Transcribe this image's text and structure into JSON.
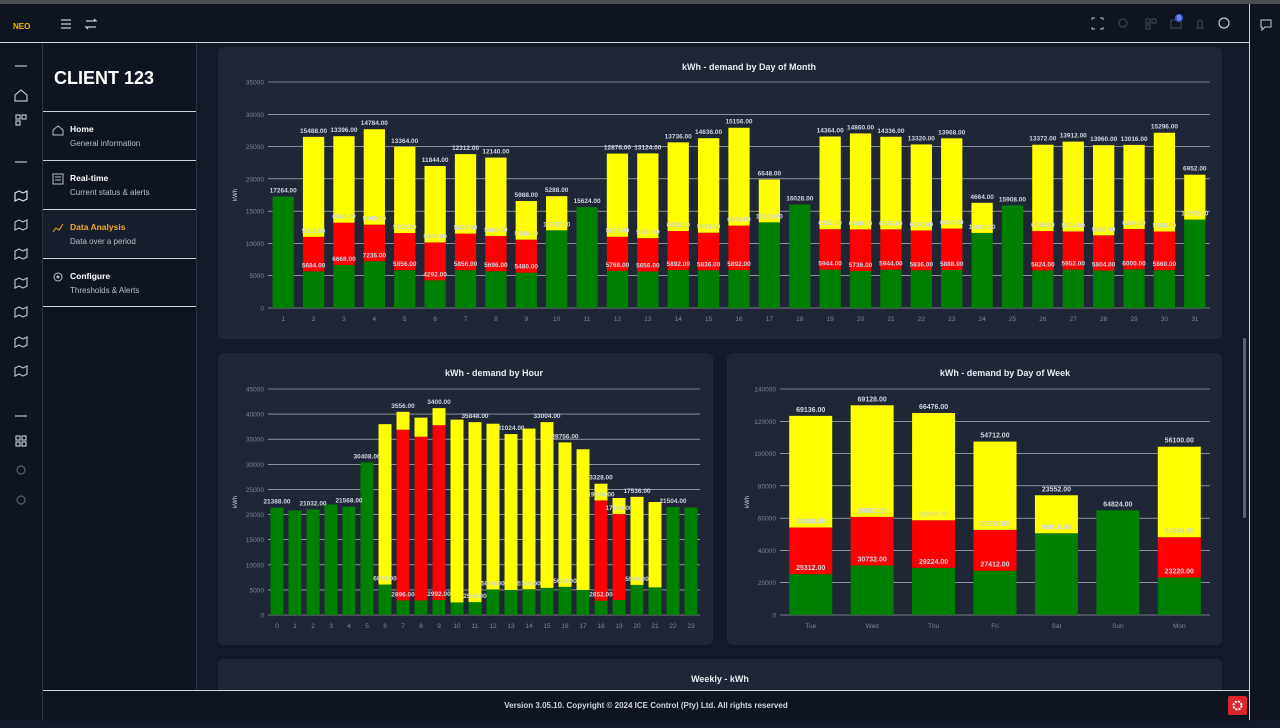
{
  "header": {
    "brand": "NEO",
    "notification_count": "0"
  },
  "sidebar": {
    "client": "CLIENT 123",
    "nav": [
      {
        "title": "Home",
        "subtitle": "General information"
      },
      {
        "title": "Real-time",
        "subtitle": "Current status & alerts"
      },
      {
        "title": "Data Analysis",
        "subtitle": "Data over a period"
      },
      {
        "title": "Configure",
        "subtitle": "Thresholds & Alerts"
      }
    ]
  },
  "chart_data": [
    {
      "type": "bar",
      "stacked": true,
      "title": "kWh - demand by Day of Month",
      "y_label": "kWh",
      "grid": true,
      "categories": [
        "1",
        "2",
        "3",
        "4",
        "5",
        "6",
        "7",
        "8",
        "9",
        "10",
        "11",
        "12",
        "13",
        "14",
        "15",
        "16",
        "17",
        "18",
        "19",
        "20",
        "21",
        "22",
        "23",
        "24",
        "25",
        "26",
        "27",
        "28",
        "29",
        "30",
        "31"
      ],
      "ylim": [
        0,
        35000
      ],
      "yticks": [
        0,
        5000,
        10000,
        15000,
        20000,
        25000,
        30000,
        35000
      ],
      "series": [
        {
          "color": "#008000",
          "values": [
            17264,
            5684,
            6668,
            7236,
            5856,
            4292,
            5856,
            5696,
            5480,
            12032,
            15624,
            5768,
            5656,
            5892,
            5836,
            5892,
            13264,
            16028,
            5944,
            5736,
            5944,
            5836,
            5888,
            11628,
            15908,
            5824,
            5952,
            5804,
            6000,
            5860,
            13692
          ],
          "value_labels": [
            "17264.00",
            "5684.00",
            "6668.00",
            "7236.00",
            "5856.00",
            "4292.00",
            "5856.00",
            "5696.00",
            "5480.00",
            "12032.00",
            "15624.00",
            "5768.00",
            "5656.00",
            "5892.00",
            "5836.00",
            "5892.00",
            "13264.00",
            "16028.00",
            "5944.00",
            "5736.00",
            "5944.00",
            "5836.00",
            "5888.00",
            "11628.00",
            "15908.00",
            "5824.00",
            "5952.00",
            "5804.00",
            "6000.00",
            "5860.00",
            "13692.00"
          ]
        },
        {
          "color": "#ff0000",
          "values": [
            null,
            5336,
            6544,
            5668,
            5752,
            5860,
            5664,
            5460,
            5108,
            null,
            null,
            5268,
            5160,
            6028,
            5824,
            6868,
            null,
            null,
            6252,
            6440,
            6240,
            6176,
            6424,
            null,
            null,
            6088,
            5904,
            5452,
            6244,
            5988,
            null
          ],
          "value_labels": [
            null,
            "5336.00",
            "6544.00",
            "5668.00",
            "5752.00",
            "5860.00",
            "5664.00",
            "5460.00",
            "5108.00",
            null,
            null,
            "5268.00",
            "5160.00",
            "6028.00",
            "5824.00",
            "6868.00",
            null,
            null,
            "6252.00",
            "6440.00",
            "6240.00",
            "6176.00",
            "6424.00",
            null,
            null,
            "6088.00",
            "5904.00",
            "5452.00",
            "6244.00",
            "5988.00",
            null
          ]
        },
        {
          "color": "#ffff00",
          "values": [
            null,
            15488,
            13396,
            14784,
            13364,
            11844,
            12312,
            12140,
            5988,
            5288,
            null,
            12876,
            13124,
            13736,
            14636,
            15156,
            6648,
            null,
            14364,
            14860,
            14336,
            13320,
            13968,
            4664,
            null,
            13372,
            13912,
            13960,
            13016,
            15296,
            6952
          ],
          "value_labels": [
            null,
            "15488.00",
            "13396.00",
            "14784.00",
            "13364.00",
            "11844.00",
            "12312.00",
            "12140.00",
            "5988.00",
            "5288.00",
            null,
            "12876.00",
            "13124.00",
            "13736.00",
            "14636.00",
            "15156.00",
            "6648.00",
            null,
            "14364.00",
            "14860.00",
            "14336.00",
            "13320.00",
            "13968.00",
            "4664.00",
            null,
            "13372.00",
            "13912.00",
            "13960.00",
            "13016.00",
            "15296.00",
            "6952.00"
          ]
        }
      ]
    },
    {
      "type": "bar",
      "stacked": true,
      "title": "kWh - demand by Hour",
      "y_label": "kWh",
      "grid": true,
      "categories": [
        "0",
        "1",
        "2",
        "3",
        "4",
        "5",
        "6",
        "7",
        "8",
        "9",
        "10",
        "11",
        "12",
        "13",
        "14",
        "15",
        "16",
        "17",
        "18",
        "19",
        "20",
        "21",
        "22",
        "23"
      ],
      "ylim": [
        0,
        45000
      ],
      "yticks": [
        0,
        5000,
        10000,
        15000,
        20000,
        25000,
        30000,
        35000,
        40000,
        45000
      ],
      "series": [
        {
          "color": "#008000",
          "values": [
            21388,
            20800,
            21032,
            22000,
            21568,
            30408,
            6068,
            2896,
            2900,
            2992,
            2500,
            2556,
            5084,
            5000,
            5120,
            5400,
            5604,
            5000,
            2852,
            3000,
            5996,
            5500,
            21504,
            21400
          ],
          "value_labels": [
            "21388.00",
            null,
            "21032.00",
            null,
            "21568.00",
            "30408.00",
            "6068.00",
            "2896.00",
            null,
            "2992.00",
            null,
            "2556.00",
            "5084.00",
            null,
            "5120.00",
            null,
            "5604.00",
            null,
            "2852.00",
            null,
            "5996.00",
            null,
            "21504.00",
            null
          ]
        },
        {
          "color": "#ff0000",
          "values": [
            null,
            null,
            null,
            null,
            null,
            null,
            null,
            34000,
            32600,
            34800,
            null,
            null,
            null,
            null,
            null,
            null,
            null,
            null,
            19964,
            17104,
            null,
            null,
            null,
            null
          ],
          "value_labels": [
            null,
            null,
            null,
            null,
            null,
            null,
            null,
            null,
            null,
            null,
            null,
            null,
            null,
            null,
            null,
            null,
            null,
            null,
            "19964.00",
            "17104.00",
            null,
            null,
            null,
            null
          ]
        },
        {
          "color": "#ffff00",
          "values": [
            null,
            null,
            null,
            null,
            null,
            null,
            31932,
            3556,
            3800,
            3400,
            36400,
            35848,
            33000,
            31024,
            32000,
            33004,
            28756,
            28000,
            3328,
            3196,
            17536,
            17000,
            null,
            null
          ],
          "value_labels": [
            null,
            null,
            null,
            null,
            null,
            null,
            null,
            "3556.00",
            null,
            "3400.00",
            null,
            "35848.00",
            null,
            "31024.00",
            null,
            "33004.00",
            "28756.00",
            null,
            "3328.00",
            null,
            "17536.00",
            null,
            null,
            null
          ]
        }
      ]
    },
    {
      "type": "bar",
      "stacked": true,
      "title": "kWh - demand by Day of Week",
      "y_label": "kWh",
      "grid": true,
      "categories": [
        "Tue",
        "Wed",
        "Thu",
        "Fri",
        "Sat",
        "Sun",
        "Mon"
      ],
      "ylim": [
        0,
        140000
      ],
      "yticks": [
        0,
        20000,
        40000,
        60000,
        80000,
        100000,
        120000,
        140000
      ],
      "series": [
        {
          "color": "#008000",
          "values": [
            25312,
            30732,
            29224,
            27412,
            50616,
            64824,
            23220
          ],
          "value_labels": [
            "25312.00",
            "30732.00",
            "29224.00",
            "27412.00",
            "50616.00",
            "64824.00",
            "23220.00"
          ]
        },
        {
          "color": "#ff0000",
          "values": [
            28908,
            30052,
            29456,
            25320,
            null,
            null,
            24944
          ],
          "value_labels": [
            "28908.00",
            "30052.00",
            "29456.00",
            "25320.00",
            null,
            null,
            "24944.00"
          ]
        },
        {
          "color": "#ffff00",
          "values": [
            69136,
            69128,
            66476,
            54712,
            23552,
            null,
            56100
          ],
          "value_labels": [
            "69136.00",
            "69128.00",
            "66476.00",
            "54712.00",
            "23552.00",
            null,
            "56100.00"
          ]
        }
      ]
    }
  ],
  "weekly_card": {
    "title": "Weekly - kWh"
  },
  "footer": {
    "text": "Version 3.05.10. Copyright © 2024 ICE Control (Pty) Ltd. All rights reserved"
  }
}
